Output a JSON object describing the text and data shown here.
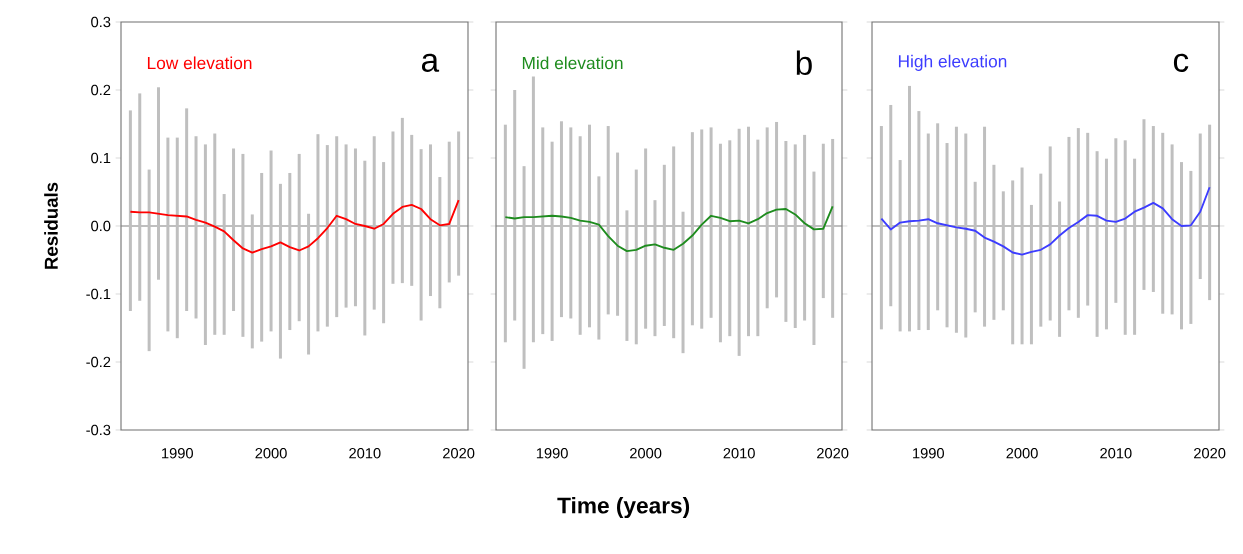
{
  "chart_data": [
    {
      "type": "line",
      "ylabel": "Residuals",
      "annotations": [
        "a"
      ],
      "xlim": [
        1984,
        2021
      ],
      "ylim": [
        -0.3,
        0.3
      ],
      "xticks": [
        1990,
        2000,
        2010,
        2020
      ],
      "yticks": [
        -0.3,
        -0.2,
        -0.1,
        {
          "value": 0,
          "label": "0.0"
        },
        0.1,
        0.2,
        0.3
      ],
      "ref_lines": [
        {
          "axis": "y",
          "value": 0,
          "color": "#808080"
        }
      ],
      "x": [
        1985,
        1986,
        1987,
        1988,
        1989,
        1990,
        1991,
        1992,
        1993,
        1994,
        1995,
        1996,
        1997,
        1998,
        1999,
        2000,
        2001,
        2002,
        2003,
        2004,
        2005,
        2006,
        2007,
        2008,
        2009,
        2010,
        2011,
        2012,
        2013,
        2014,
        2015,
        2016,
        2017,
        2018,
        2019,
        2020
      ],
      "series": [
        {
          "type": "bar",
          "color": "#bfbfbf",
          "base": [
            -0.125,
            -0.11,
            -0.184,
            -0.079,
            -0.155,
            -0.165,
            -0.125,
            -0.136,
            -0.175,
            -0.16,
            -0.16,
            -0.125,
            -0.163,
            -0.18,
            -0.17,
            -0.155,
            -0.195,
            -0.153,
            -0.14,
            -0.189,
            -0.155,
            -0.148,
            -0.134,
            -0.12,
            -0.118,
            -0.161,
            -0.123,
            -0.143,
            -0.085,
            -0.084,
            -0.088,
            -0.139,
            -0.103,
            -0.121,
            -0.083,
            -0.073
          ],
          "values": [
            0.295,
            0.305,
            0.267,
            0.283,
            0.285,
            0.295,
            0.298,
            0.268,
            0.295,
            0.296,
            0.207,
            0.239,
            0.269,
            0.197,
            0.248,
            0.266,
            0.257,
            0.231,
            0.246,
            0.207,
            0.29,
            0.267,
            0.266,
            0.24,
            0.232,
            0.257,
            0.255,
            0.237,
            0.224,
            0.243,
            0.222,
            0.252,
            0.223,
            0.193,
            0.207,
            0.212
          ]
        },
        {
          "name": "Low elevation",
          "color": "#ff0000",
          "values": [
            0.021,
            0.02,
            0.02,
            0.018,
            0.016,
            0.015,
            0.014,
            0.009,
            0.005,
            -0.001,
            -0.008,
            -0.021,
            -0.033,
            -0.039,
            -0.034,
            -0.03,
            -0.024,
            -0.031,
            -0.036,
            -0.03,
            -0.018,
            -0.003,
            0.015,
            0.01,
            0.003,
            0,
            -0.004,
            0.003,
            0.018,
            0.028,
            0.031,
            0.025,
            0.01,
            0.001,
            0.003,
            0.038
          ]
        }
      ]
    },
    {
      "type": "line",
      "xlabel": "Time (years)",
      "annotations": [
        "b"
      ],
      "tick_labels": "x",
      "xlim": [
        1984,
        2021
      ],
      "ylim": [
        -0.3,
        0.3
      ],
      "xticks": [
        1990,
        2000,
        2010,
        2020
      ],
      "yticks": [
        -0.3,
        -0.2,
        -0.1,
        0,
        0.1,
        0.2,
        0.3
      ],
      "ref_lines": [
        {
          "axis": "y",
          "value": 0,
          "color": "#808080"
        }
      ],
      "x": [
        1985,
        1986,
        1987,
        1988,
        1989,
        1990,
        1991,
        1992,
        1993,
        1994,
        1995,
        1996,
        1997,
        1998,
        1999,
        2000,
        2001,
        2002,
        2003,
        2004,
        2005,
        2006,
        2007,
        2008,
        2009,
        2010,
        2011,
        2012,
        2013,
        2014,
        2015,
        2016,
        2017,
        2018,
        2019,
        2020
      ],
      "series": [
        {
          "type": "bar",
          "color": "#bfbfbf",
          "base": [
            -0.171,
            -0.139,
            -0.21,
            -0.171,
            -0.159,
            -0.169,
            -0.134,
            -0.136,
            -0.16,
            -0.149,
            -0.167,
            -0.13,
            -0.132,
            -0.169,
            -0.174,
            -0.151,
            -0.162,
            -0.147,
            -0.165,
            -0.187,
            -0.146,
            -0.151,
            -0.135,
            -0.171,
            -0.162,
            -0.191,
            -0.162,
            -0.162,
            -0.121,
            -0.105,
            -0.141,
            -0.15,
            -0.139,
            -0.175,
            -0.106,
            -0.135
          ],
          "values": [
            0.32,
            0.339,
            0.298,
            0.391,
            0.304,
            0.293,
            0.288,
            0.281,
            0.292,
            0.298,
            0.24,
            0.277,
            0.24,
            0.192,
            0.257,
            0.265,
            0.2,
            0.237,
            0.282,
            0.208,
            0.284,
            0.293,
            0.28,
            0.292,
            0.288,
            0.334,
            0.308,
            0.289,
            0.266,
            0.258,
            0.266,
            0.27,
            0.273,
            0.255,
            0.227,
            0.263
          ]
        },
        {
          "name": "Mid elevation",
          "color": "#1e8c1e",
          "values": [
            0.013,
            0.011,
            0.013,
            0.013,
            0.014,
            0.015,
            0.014,
            0.012,
            0.008,
            0.006,
            0.002,
            -0.015,
            -0.029,
            -0.037,
            -0.035,
            -0.029,
            -0.027,
            -0.032,
            -0.035,
            -0.026,
            -0.014,
            0.002,
            0.015,
            0.012,
            0.007,
            0.008,
            0.004,
            0.01,
            0.019,
            0.024,
            0.025,
            0.017,
            0.004,
            -0.005,
            -0.004,
            0.029
          ]
        }
      ]
    },
    {
      "type": "line",
      "annotations": [
        "c"
      ],
      "tick_labels": "x",
      "xlim": [
        1984,
        2021
      ],
      "ylim": [
        -0.3,
        0.3
      ],
      "xticks": [
        1990,
        2000,
        2010,
        2020
      ],
      "yticks": [
        -0.3,
        -0.2,
        -0.1,
        0,
        0.1,
        0.2,
        0.3
      ],
      "ref_lines": [
        {
          "axis": "y",
          "value": 0,
          "color": "#808080"
        }
      ],
      "x": [
        1985,
        1986,
        1987,
        1988,
        1989,
        1990,
        1991,
        1992,
        1993,
        1994,
        1995,
        1996,
        1997,
        1998,
        1999,
        2000,
        2001,
        2002,
        2003,
        2004,
        2005,
        2006,
        2007,
        2008,
        2009,
        2010,
        2011,
        2012,
        2013,
        2014,
        2015,
        2016,
        2017,
        2018,
        2019,
        2020
      ],
      "series": [
        {
          "type": "bar",
          "color": "#bfbfbf",
          "base": [
            -0.152,
            -0.118,
            -0.155,
            -0.155,
            -0.153,
            -0.153,
            -0.124,
            -0.149,
            -0.157,
            -0.164,
            -0.127,
            -0.148,
            -0.138,
            -0.124,
            -0.174,
            -0.174,
            -0.174,
            -0.148,
            -0.139,
            -0.163,
            -0.124,
            -0.135,
            -0.117,
            -0.163,
            -0.152,
            -0.113,
            -0.16,
            -0.16,
            -0.094,
            -0.097,
            -0.129,
            -0.13,
            -0.152,
            -0.144,
            -0.078,
            -0.109
          ],
          "values": [
            0.299,
            0.296,
            0.252,
            0.361,
            0.322,
            0.289,
            0.275,
            0.271,
            0.303,
            0.3,
            0.192,
            0.294,
            0.228,
            0.175,
            0.241,
            0.26,
            0.205,
            0.225,
            0.256,
            0.199,
            0.255,
            0.279,
            0.254,
            0.273,
            0.251,
            0.242,
            0.286,
            0.259,
            0.251,
            0.244,
            0.266,
            0.25,
            0.246,
            0.225,
            0.214,
            0.258
          ]
        },
        {
          "name": "High elevation",
          "color": "#3c3cff",
          "values": [
            0.011,
            -0.005,
            0.005,
            0.007,
            0.008,
            0.01,
            0.004,
            0.001,
            -0.002,
            -0.004,
            -0.007,
            -0.017,
            -0.023,
            -0.03,
            -0.039,
            -0.042,
            -0.038,
            -0.035,
            -0.027,
            -0.014,
            -0.003,
            0.006,
            0.016,
            0.015,
            0.008,
            0.006,
            0.011,
            0.021,
            0.027,
            0.034,
            0.026,
            0.01,
            0,
            0.001,
            0.021,
            0.057
          ]
        }
      ]
    }
  ]
}
